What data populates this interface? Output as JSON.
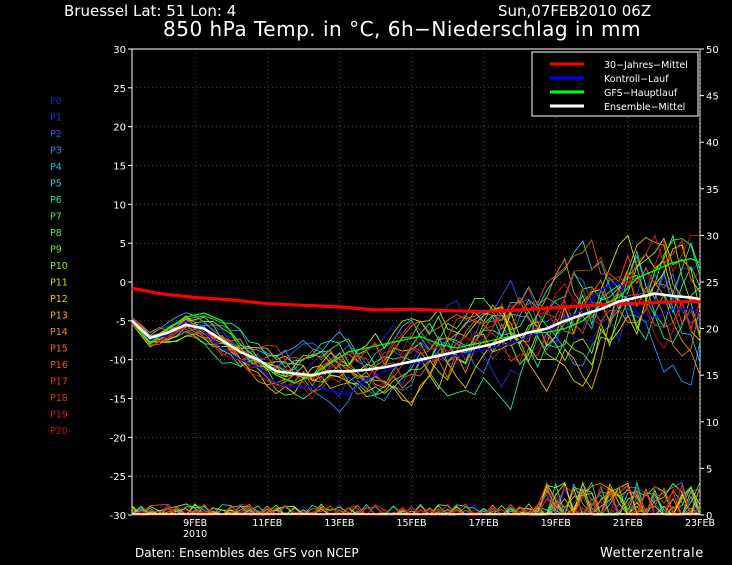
{
  "header": {
    "station": "Bruessel   Lat: 51  Lon: 4",
    "run": "Sun,07FEB2010 06Z",
    "title": "850 hPa Temp. in °C, 6h−Niederschlag in mm"
  },
  "footer": {
    "source": "Daten: Ensembles des GFS von NCEP",
    "brand": "Wetterzentrale"
  },
  "colors": {
    "background": "#000000",
    "mean30": "#ff0000",
    "control": "#0000ff",
    "gfs": "#00ff00",
    "ensemble_mean": "#ffffff"
  },
  "chart_data": {
    "type": "line",
    "x_axis": {
      "start": "07FEB2010 06Z",
      "end": "23FEB2010",
      "ticks": [
        "9FEB\n2010",
        "11FEB",
        "13FEB",
        "15FEB",
        "17FEB",
        "19FEB",
        "21FEB",
        "23FEB"
      ],
      "tick_days": [
        9,
        11,
        13,
        15,
        17,
        19,
        21,
        23
      ],
      "range_days": [
        7.25,
        23
      ]
    },
    "y_left": {
      "label": "850 hPa Temp. °C",
      "range": [
        -30,
        30
      ],
      "ticks": [
        30,
        25,
        20,
        15,
        10,
        5,
        0,
        -5,
        -10,
        -15,
        -20,
        -25,
        -30
      ]
    },
    "y_right": {
      "label": "6h-Niederschlag mm",
      "range": [
        0,
        50
      ],
      "ticks": [
        50,
        45,
        40,
        35,
        30,
        25,
        20,
        15,
        10,
        5,
        0
      ]
    },
    "grid": true,
    "legend": {
      "position": "top-right",
      "entries": [
        {
          "label": "30−Jahres−Mittel",
          "color": "#ff0000"
        },
        {
          "label": "Kontroll−Lauf",
          "color": "#0000ff"
        },
        {
          "label": "GFS−Hauptlauf",
          "color": "#00ff00"
        },
        {
          "label": "Ensemble−Mittel",
          "color": "#ffffff"
        }
      ]
    },
    "members": [
      {
        "label": "P0",
        "color": "#2020c0"
      },
      {
        "label": "P1",
        "color": "#2038d8"
      },
      {
        "label": "P2",
        "color": "#2060f0"
      },
      {
        "label": "P3",
        "color": "#2090f8"
      },
      {
        "label": "P4",
        "color": "#20b8e8"
      },
      {
        "label": "P5",
        "color": "#20d8c8"
      },
      {
        "label": "P6",
        "color": "#20e890"
      },
      {
        "label": "P7",
        "color": "#30f060"
      },
      {
        "label": "P8",
        "color": "#40f040"
      },
      {
        "label": "P9",
        "color": "#60f020"
      },
      {
        "label": "P10",
        "color": "#90f010"
      },
      {
        "label": "P11",
        "color": "#c0e800"
      },
      {
        "label": "P12",
        "color": "#e8d000"
      },
      {
        "label": "P13",
        "color": "#f0b000"
      },
      {
        "label": "P14",
        "color": "#f09000"
      },
      {
        "label": "P15",
        "color": "#f07000"
      },
      {
        "label": "P16",
        "color": "#f05800"
      },
      {
        "label": "P17",
        "color": "#e84000"
      },
      {
        "label": "P18",
        "color": "#e03000"
      },
      {
        "label": "P19",
        "color": "#d02010"
      },
      {
        "label": "P20",
        "color": "#c01010"
      }
    ],
    "series": [
      {
        "name": "30−Jahres−Mittel",
        "x": [
          7.25,
          8,
          9,
          10,
          11,
          12,
          13,
          14,
          15,
          16,
          17,
          18,
          19,
          20,
          21,
          22,
          23
        ],
        "y": [
          -0.8,
          -1.5,
          -2,
          -2.3,
          -2.8,
          -3,
          -3.2,
          -3.6,
          -3.5,
          -3.7,
          -3.8,
          -3.6,
          -3.3,
          -3,
          -2.8,
          -2.6,
          -2.5
        ]
      },
      {
        "name": "Ensemble−Mittel",
        "x": [
          7.25,
          7.75,
          8.25,
          8.75,
          9.25,
          9.75,
          10.25,
          10.75,
          11.25,
          11.75,
          12.25,
          12.75,
          13.25,
          13.75,
          14.25,
          14.75,
          15.25,
          15.75,
          16.25,
          16.75,
          17.25,
          17.75,
          18.25,
          18.75,
          19.25,
          19.75,
          20.25,
          20.75,
          21.25,
          21.75,
          22.25,
          22.75,
          23
        ],
        "y": [
          -5,
          -7.2,
          -6.5,
          -5.5,
          -6,
          -7.5,
          -9,
          -10,
          -11.5,
          -11.8,
          -12,
          -11.5,
          -11.5,
          -11.3,
          -11,
          -10.5,
          -10,
          -9.5,
          -9,
          -8.5,
          -8,
          -7.2,
          -6.5,
          -6,
          -5,
          -4.2,
          -3.5,
          -2.5,
          -2,
          -1.5,
          -1.8,
          -2,
          -2.2
        ]
      },
      {
        "name": "Kontroll−Lauf",
        "x": [
          7.25,
          7.75,
          8.25,
          8.75,
          9.25,
          9.75,
          10.25,
          10.75,
          11.25,
          11.75,
          12.25,
          12.75,
          13.25,
          13.75,
          14.25,
          14.75,
          15.25,
          15.75,
          16.25,
          16.75,
          17.25,
          17.75,
          18.25,
          18.75,
          19.25,
          19.75,
          20.25,
          20.75,
          21.25,
          21.75,
          22.25,
          22.75,
          23
        ],
        "y": [
          -5,
          -7.5,
          -6.8,
          -5,
          -6.5,
          -8.5,
          -10,
          -11,
          -13,
          -13.5,
          -13.5,
          -14,
          -14.5,
          -12.5,
          -11.5,
          -10.5,
          -10.5,
          -9.5,
          -9.5,
          -9,
          -8.5,
          -8,
          -7,
          -6.5,
          -5,
          -3.5,
          -1,
          0,
          -4,
          -4.5,
          -3.5,
          -3.5,
          -4
        ]
      },
      {
        "name": "GFS−Hauptlauf",
        "x": [
          7.25,
          7.75,
          8.25,
          8.75,
          9.25,
          9.75,
          10.25,
          10.75,
          11.25,
          11.75,
          12.25,
          12.75,
          13.25,
          13.75,
          14.25,
          14.75,
          15.25,
          15.75,
          16.25,
          16.75,
          17.25,
          17.75,
          18.25,
          18.75,
          19.25,
          19.75,
          20.25,
          20.75,
          21.25,
          21.75,
          22.25,
          22.75,
          23
        ],
        "y": [
          -5,
          -8,
          -6,
          -4.5,
          -4,
          -5,
          -8,
          -10,
          -12,
          -13,
          -12,
          -10.5,
          -9,
          -8.5,
          -8,
          -7.5,
          -7,
          -8,
          -8.5,
          -8,
          -7.5,
          -7,
          -6.5,
          -6.5,
          -6,
          -5,
          -3,
          -2,
          0.5,
          1.5,
          2.5,
          3,
          2.5
        ]
      }
    ],
    "precip_note": "6h precipitation traces drawn along bottom (right axis mm), peak about 6 mm near 21FEB"
  }
}
